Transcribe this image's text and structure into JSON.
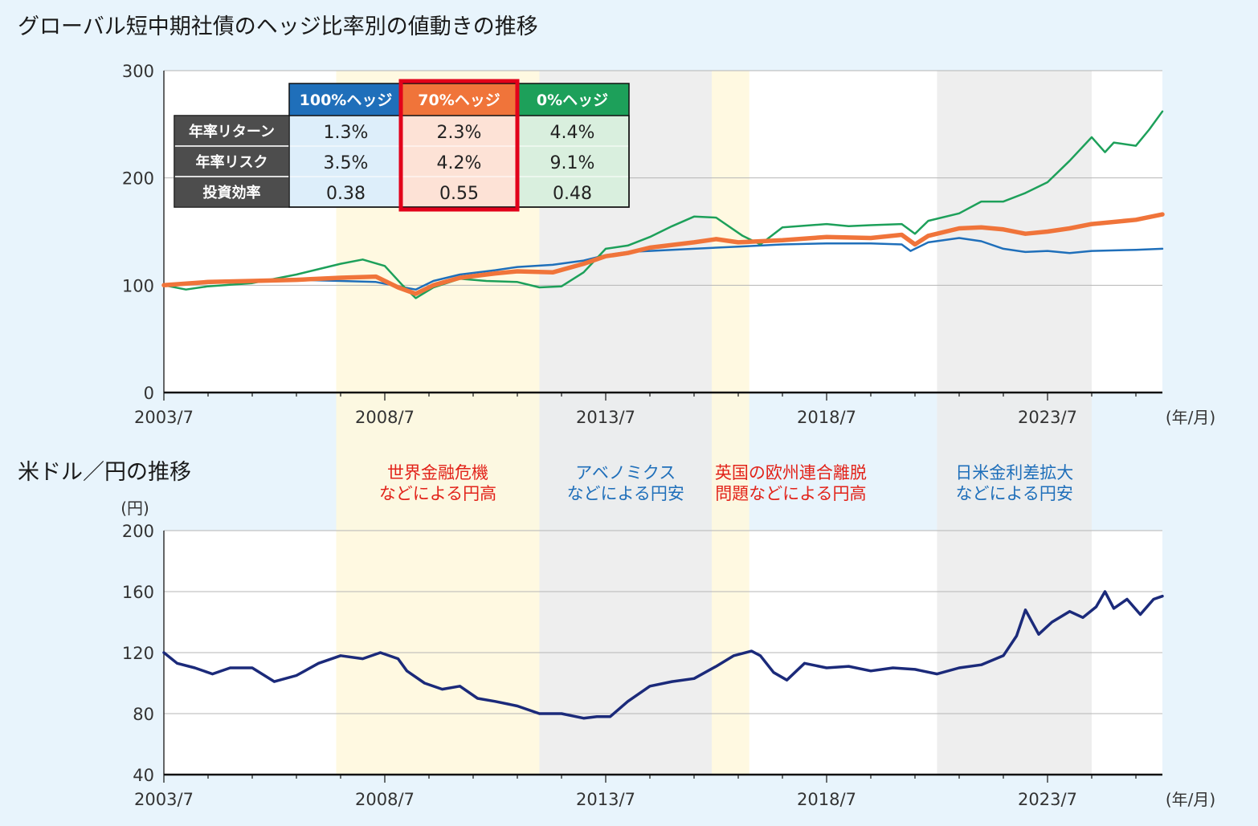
{
  "chart_data": [
    {
      "type": "line",
      "title": "グローバル短中期社債のヘッジ比率別の値動きの推移",
      "x_unit": "(年/月)",
      "x_ticks": [
        "2003/7",
        "2008/7",
        "2013/7",
        "2018/7",
        "2023/7"
      ],
      "ylim": [
        0,
        300
      ],
      "y_ticks": [
        0,
        100,
        200,
        300
      ],
      "grid": true,
      "series": [
        {
          "name": "100%ヘッジ",
          "color": "#1f6fba",
          "points": [
            [
              2003.5,
              100
            ],
            [
              2004.5,
              102
            ],
            [
              2005.5,
              104
            ],
            [
              2006.5,
              105
            ],
            [
              2007.5,
              104
            ],
            [
              2008.3,
              103
            ],
            [
              2008.8,
              99
            ],
            [
              2009.2,
              96
            ],
            [
              2009.6,
              104
            ],
            [
              2010.2,
              110
            ],
            [
              2011,
              114
            ],
            [
              2011.5,
              117
            ],
            [
              2012.3,
              119
            ],
            [
              2013,
              123
            ],
            [
              2013.5,
              128
            ],
            [
              2014,
              131
            ],
            [
              2014.5,
              132
            ],
            [
              2015.5,
              134
            ],
            [
              2016.5,
              136
            ],
            [
              2017.5,
              138
            ],
            [
              2018.5,
              139
            ],
            [
              2019.5,
              139
            ],
            [
              2020.2,
              138
            ],
            [
              2020.4,
              132
            ],
            [
              2020.8,
              140
            ],
            [
              2021.5,
              144
            ],
            [
              2022.0,
              141
            ],
            [
              2022.5,
              134
            ],
            [
              2023.0,
              131
            ],
            [
              2023.5,
              132
            ],
            [
              2024.0,
              130
            ],
            [
              2024.5,
              132
            ],
            [
              2025.5,
              133
            ],
            [
              2026.1,
              134
            ]
          ]
        },
        {
          "name": "70%ヘッジ",
          "color": "#f0743a",
          "points": [
            [
              2003.5,
              100
            ],
            [
              2004.5,
              103
            ],
            [
              2005.5,
              104
            ],
            [
              2006.5,
              105
            ],
            [
              2007.5,
              107
            ],
            [
              2008.3,
              108
            ],
            [
              2008.8,
              98
            ],
            [
              2009.2,
              92
            ],
            [
              2009.6,
              100
            ],
            [
              2010.2,
              107
            ],
            [
              2011,
              111
            ],
            [
              2011.5,
              113
            ],
            [
              2012.3,
              112
            ],
            [
              2013,
              120
            ],
            [
              2013.5,
              127
            ],
            [
              2014,
              130
            ],
            [
              2014.5,
              135
            ],
            [
              2015.5,
              140
            ],
            [
              2016,
              143
            ],
            [
              2016.5,
              140
            ],
            [
              2017.5,
              142
            ],
            [
              2018.5,
              145
            ],
            [
              2019.5,
              144
            ],
            [
              2020.2,
              147
            ],
            [
              2020.5,
              138
            ],
            [
              2020.8,
              146
            ],
            [
              2021.5,
              153
            ],
            [
              2022.0,
              154
            ],
            [
              2022.5,
              152
            ],
            [
              2023.0,
              148
            ],
            [
              2023.5,
              150
            ],
            [
              2024.0,
              153
            ],
            [
              2024.5,
              157
            ],
            [
              2025.5,
              161
            ],
            [
              2026.1,
              166
            ]
          ]
        },
        {
          "name": "0%ヘッジ",
          "color": "#1da05a",
          "points": [
            [
              2003.5,
              100
            ],
            [
              2004.0,
              96
            ],
            [
              2004.5,
              99
            ],
            [
              2005.5,
              102
            ],
            [
              2006.5,
              110
            ],
            [
              2007.5,
              120
            ],
            [
              2008.0,
              124
            ],
            [
              2008.5,
              118
            ],
            [
              2008.9,
              100
            ],
            [
              2009.2,
              88
            ],
            [
              2009.6,
              98
            ],
            [
              2010.2,
              106
            ],
            [
              2010.8,
              104
            ],
            [
              2011.5,
              103
            ],
            [
              2012.0,
              98
            ],
            [
              2012.5,
              99
            ],
            [
              2013,
              112
            ],
            [
              2013.5,
              134
            ],
            [
              2014,
              137
            ],
            [
              2014.5,
              145
            ],
            [
              2015.0,
              155
            ],
            [
              2015.5,
              164
            ],
            [
              2016,
              163
            ],
            [
              2016.6,
              146
            ],
            [
              2017.0,
              138
            ],
            [
              2017.5,
              154
            ],
            [
              2018.5,
              157
            ],
            [
              2019.0,
              155
            ],
            [
              2019.5,
              156
            ],
            [
              2020.2,
              157
            ],
            [
              2020.5,
              148
            ],
            [
              2020.8,
              160
            ],
            [
              2021.5,
              167
            ],
            [
              2022.0,
              178
            ],
            [
              2022.5,
              178
            ],
            [
              2023.0,
              186
            ],
            [
              2023.5,
              196
            ],
            [
              2024.0,
              216
            ],
            [
              2024.5,
              238
            ],
            [
              2024.8,
              224
            ],
            [
              2025.0,
              233
            ],
            [
              2025.5,
              230
            ],
            [
              2025.8,
              245
            ],
            [
              2026.1,
              262
            ]
          ]
        }
      ]
    },
    {
      "type": "line",
      "title": "米ドル／円の推移",
      "y_unit": "(円)",
      "x_unit": "(年/月)",
      "x_ticks": [
        "2003/7",
        "2008/7",
        "2013/7",
        "2018/7",
        "2023/7"
      ],
      "ylim": [
        40,
        200
      ],
      "y_ticks": [
        40,
        80,
        120,
        160,
        200
      ],
      "grid": true,
      "series": [
        {
          "name": "米ドル/円",
          "color": "#1b2a7a",
          "points": [
            [
              2003.5,
              120
            ],
            [
              2003.8,
              113
            ],
            [
              2004.2,
              110
            ],
            [
              2004.6,
              106
            ],
            [
              2005.0,
              110
            ],
            [
              2005.5,
              110
            ],
            [
              2006.0,
              101
            ],
            [
              2006.5,
              105
            ],
            [
              2007.0,
              113
            ],
            [
              2007.5,
              118
            ],
            [
              2008.0,
              116
            ],
            [
              2008.4,
              120
            ],
            [
              2008.8,
              116
            ],
            [
              2009.0,
              108
            ],
            [
              2009.4,
              100
            ],
            [
              2009.8,
              96
            ],
            [
              2010.2,
              98
            ],
            [
              2010.6,
              90
            ],
            [
              2011.0,
              88
            ],
            [
              2011.5,
              85
            ],
            [
              2012.0,
              80
            ],
            [
              2012.5,
              80
            ],
            [
              2013.0,
              77
            ],
            [
              2013.3,
              78
            ],
            [
              2013.6,
              78
            ],
            [
              2014.0,
              88
            ],
            [
              2014.5,
              98
            ],
            [
              2015.0,
              101
            ],
            [
              2015.5,
              103
            ],
            [
              2016.0,
              111
            ],
            [
              2016.4,
              118
            ],
            [
              2016.8,
              121
            ],
            [
              2017.0,
              118
            ],
            [
              2017.3,
              107
            ],
            [
              2017.6,
              102
            ],
            [
              2018.0,
              113
            ],
            [
              2018.5,
              110
            ],
            [
              2019.0,
              111
            ],
            [
              2019.5,
              108
            ],
            [
              2020.0,
              110
            ],
            [
              2020.5,
              109
            ],
            [
              2021.0,
              106
            ],
            [
              2021.5,
              110
            ],
            [
              2022.0,
              112
            ],
            [
              2022.5,
              118
            ],
            [
              2022.8,
              131
            ],
            [
              2023.0,
              148
            ],
            [
              2023.3,
              132
            ],
            [
              2023.6,
              140
            ],
            [
              2024.0,
              147
            ],
            [
              2024.3,
              143
            ],
            [
              2024.6,
              150
            ],
            [
              2024.8,
              160
            ],
            [
              2025.0,
              149
            ],
            [
              2025.3,
              155
            ],
            [
              2025.6,
              145
            ],
            [
              2025.9,
              155
            ],
            [
              2026.1,
              157
            ]
          ]
        }
      ]
    }
  ],
  "periods": [
    {
      "label1": "世界金融危機",
      "label2": "などによる円高",
      "color": "#fff8dc",
      "label_color": "#e2231a",
      "start": 2007.4,
      "end": 2012.0
    },
    {
      "label1": "アベノミクス",
      "label2": "などによる円安",
      "color": "#ebebeb",
      "label_color": "#1f6fba",
      "start": 2012.0,
      "end": 2015.9
    },
    {
      "label1": "英国の欧州連合離脱",
      "label2": "問題などによる円高",
      "color": "#fff8dc",
      "label_color": "#e2231a",
      "start": 2015.9,
      "end": 2016.75
    },
    {
      "label1": "日米金利差拡大",
      "label2": "などによる円安",
      "color": "#ebebeb",
      "label_color": "#1f6fba",
      "start": 2021.0,
      "end": 2024.5
    }
  ],
  "table": {
    "columns": [
      {
        "label": "100%ヘッジ",
        "head_color": "#1f6fba",
        "cell_color": "#ddeefa"
      },
      {
        "label": "70%ヘッジ",
        "head_color": "#f0743a",
        "cell_color": "#fde2d6"
      },
      {
        "label": "0%ヘッジ",
        "head_color": "#1da05a",
        "cell_color": "#d9efde"
      }
    ],
    "rows": [
      {
        "label": "年率リターン",
        "values": [
          "1.3%",
          "2.3%",
          "4.4%"
        ]
      },
      {
        "label": "年率リスク",
        "values": [
          "3.5%",
          "4.2%",
          "9.1%"
        ]
      },
      {
        "label": "投資効率",
        "values": [
          "0.38",
          "0.55",
          "0.48"
        ]
      }
    ],
    "row_head_color": "#4d4d4d",
    "highlight_color": "#e2001a"
  }
}
